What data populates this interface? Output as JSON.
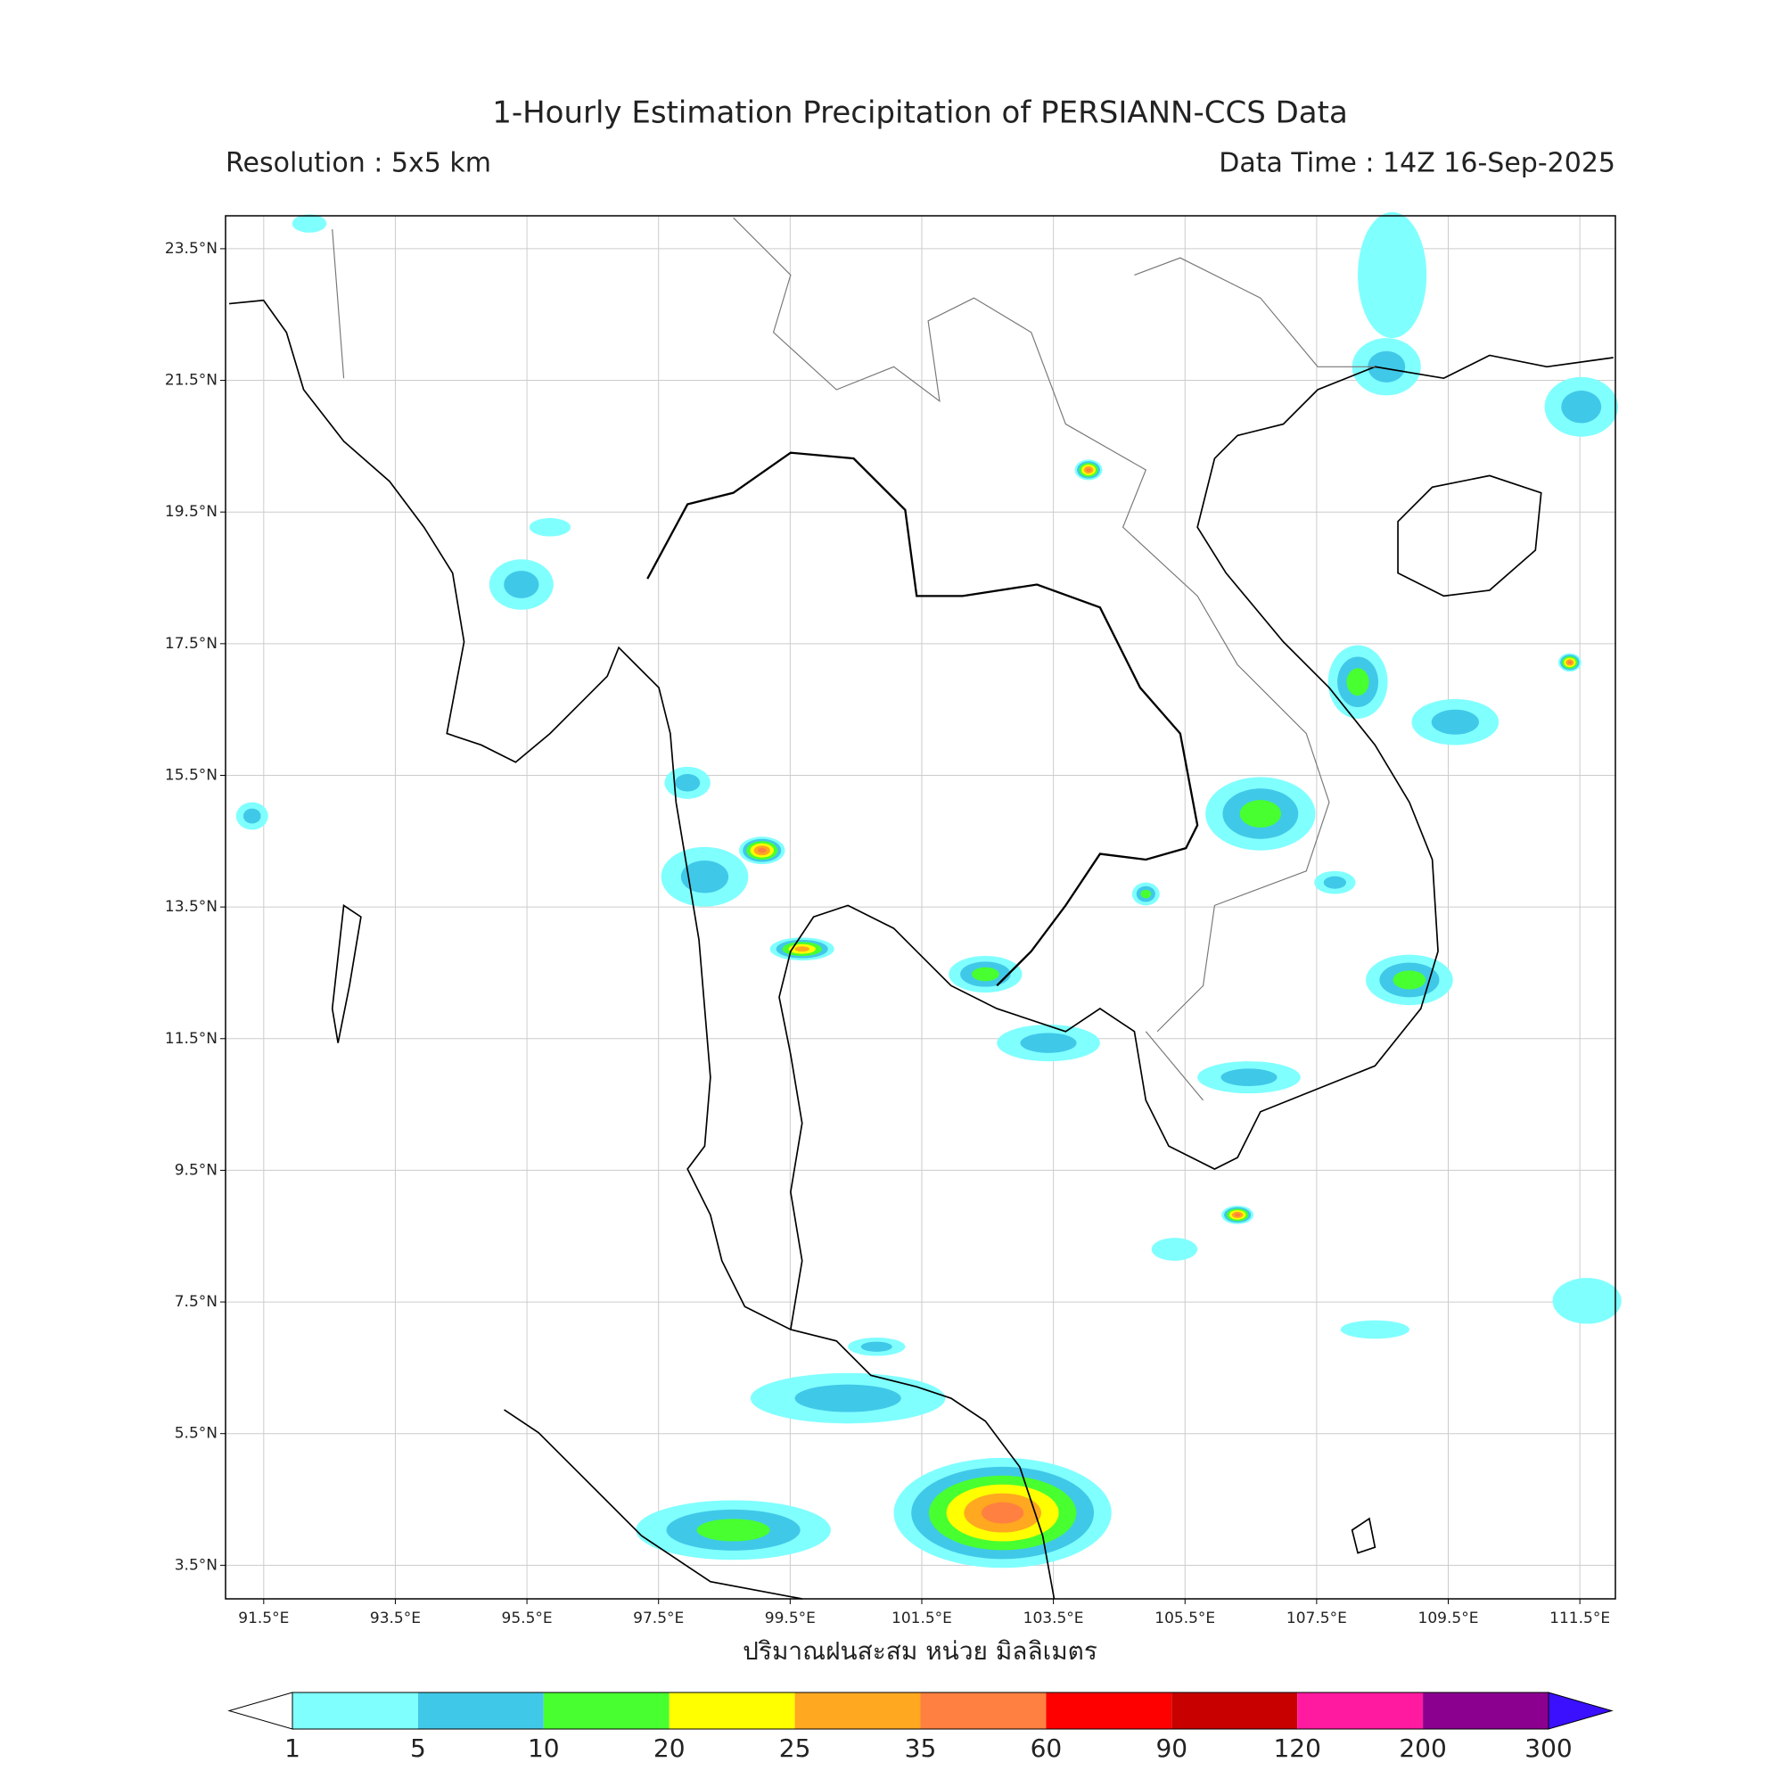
{
  "header": {
    "title": "1-Hourly Estimation Precipitation of PERSIANN-CCS Data",
    "resolution": "Resolution : 5x5 km",
    "data_time": "Data Time : 14Z 16-Sep-2025"
  },
  "map": {
    "xlim": [
      90.92,
      112.04
    ],
    "ylim": [
      2.99,
      24.0
    ],
    "grid": true,
    "xticks": [
      {
        "value": 91.5,
        "label": "91.5°E"
      },
      {
        "value": 93.5,
        "label": "93.5°E"
      },
      {
        "value": 95.5,
        "label": "95.5°E"
      },
      {
        "value": 97.5,
        "label": "97.5°E"
      },
      {
        "value": 99.5,
        "label": "99.5°E"
      },
      {
        "value": 101.5,
        "label": "101.5°E"
      },
      {
        "value": 103.5,
        "label": "103.5°E"
      },
      {
        "value": 105.5,
        "label": "105.5°E"
      },
      {
        "value": 107.5,
        "label": "107.5°E"
      },
      {
        "value": 109.5,
        "label": "109.5°E"
      },
      {
        "value": 111.5,
        "label": "111.5°E"
      }
    ],
    "yticks": [
      {
        "value": 23.5,
        "label": "23.5°N"
      },
      {
        "value": 21.5,
        "label": "21.5°N"
      },
      {
        "value": 19.5,
        "label": "19.5°N"
      },
      {
        "value": 17.5,
        "label": "17.5°N"
      },
      {
        "value": 15.5,
        "label": "15.5°N"
      },
      {
        "value": 13.5,
        "label": "13.5°N"
      },
      {
        "value": 11.5,
        "label": "11.5°N"
      },
      {
        "value": 9.5,
        "label": "9.5°N"
      },
      {
        "value": 7.5,
        "label": "7.5°N"
      },
      {
        "value": 5.5,
        "label": "5.5°N"
      },
      {
        "value": 3.5,
        "label": "3.5°N"
      }
    ],
    "xlabel": "ปริมาณฝนสะสม หน่วย มิลลิเมตร"
  },
  "colorbar": {
    "levels": [
      1,
      5,
      10,
      20,
      25,
      35,
      60,
      90,
      120,
      200,
      300
    ],
    "colors": [
      "#80ffff",
      "#40c8e8",
      "#48ff30",
      "#ffff00",
      "#ffa820",
      "#ff8040",
      "#ff0000",
      "#c80000",
      "#ff1aa0",
      "#8c0090"
    ],
    "under_color": "#ffffff",
    "over_color": "#3a10ff"
  }
}
